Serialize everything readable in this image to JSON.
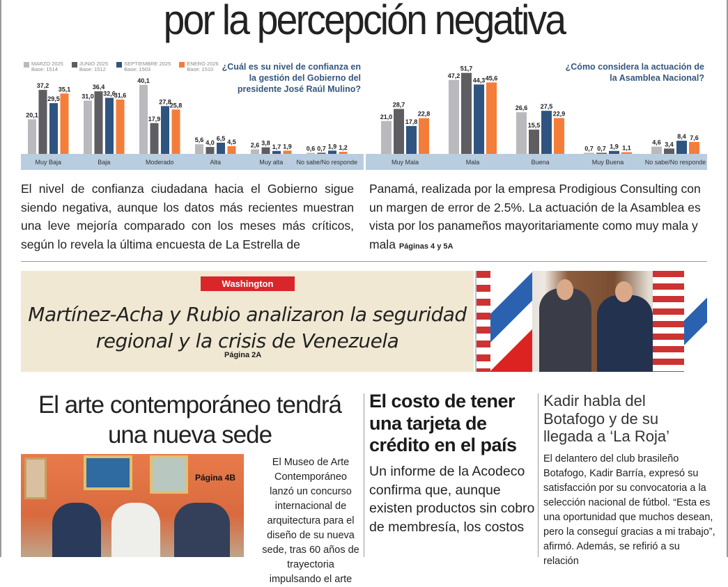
{
  "headline": "por la percepción negativa",
  "legend": [
    {
      "label": "MARZO 2025",
      "base": "Base: 1514",
      "color": "#b9b9be"
    },
    {
      "label": "JUNIO 2025",
      "base": "Base: 1512",
      "color": "#5e5e62"
    },
    {
      "label": "SEPTIEMBRE 2025",
      "base": "Base: 1503",
      "color": "#2f5480"
    },
    {
      "label": "ENERO 2026",
      "base": "Base: 1510",
      "color": "#f47d3a"
    }
  ],
  "chart_data": [
    {
      "type": "bar",
      "title": "¿Cuál es su nivel de confianza en la gestión del Gobierno del presidente José Raúl Mulino?",
      "categories": [
        "Muy Baja",
        "Baja",
        "Moderado",
        "Alta",
        "Muy alta",
        "No sabe/No responde"
      ],
      "series": [
        {
          "name": "MARZO 2025",
          "values": [
            20.1,
            31.0,
            40.1,
            5.6,
            2.6,
            0.6
          ]
        },
        {
          "name": "JUNIO 2025",
          "values": [
            37.2,
            36.4,
            17.9,
            4.0,
            3.8,
            0.7
          ]
        },
        {
          "name": "SEPTIEMBRE 2025",
          "values": [
            29.5,
            32.6,
            27.8,
            6.5,
            1.7,
            1.9
          ]
        },
        {
          "name": "ENERO 2026",
          "values": [
            35.1,
            31.6,
            25.8,
            4.5,
            1.9,
            1.2
          ]
        }
      ],
      "ylim": [
        0,
        42
      ]
    },
    {
      "type": "bar",
      "title": "¿Cómo considera la actuación de la Asamblea Nacional?",
      "categories": [
        "Muy Mala",
        "Mala",
        "Buena",
        "Muy Buena",
        "No sabe/No responde"
      ],
      "series": [
        {
          "name": "MARZO 2025",
          "values": [
            21.0,
            47.2,
            26.6,
            0.7,
            4.6
          ]
        },
        {
          "name": "JUNIO 2025",
          "values": [
            28.7,
            51.7,
            15.5,
            0.7,
            3.4
          ]
        },
        {
          "name": "SEPTIEMBRE 2025",
          "values": [
            17.8,
            44.3,
            27.5,
            1.9,
            8.4
          ]
        },
        {
          "name": "ENERO 2026",
          "values": [
            22.8,
            45.6,
            22.9,
            1.1,
            7.6
          ]
        }
      ],
      "ylim": [
        0,
        54
      ]
    }
  ],
  "lead": {
    "left": "El nivel de confianza ciudadana hacia el Gobierno sigue siendo negativa, aunque los datos más recientes muestran una leve mejoría comparado con los meses más críticos, según lo revela la última encuesta de La Estrella de",
    "right": "Panamá, realizada por la empresa Prodigious Consulting con un margen de error de 2.5%. La actuación de la Asamblea es vista por los panameños mayoritariamente como muy mala y mala",
    "page": "Páginas 4 y 5A"
  },
  "washington": {
    "tag": "Washington",
    "headline": "Martínez-Acha y Rubio analizaron la seguridad regional y la crisis de Venezuela",
    "page": "Página 2A"
  },
  "art": {
    "headline": "El arte contemporáneo tendrá una nueva sede",
    "page": "Página 4B",
    "text": "El Museo de Arte Contemporáneo lanzó un concurso internacional de arquitectura para el diseño de su nueva sede, tras 60 años de trayectoria impulsando el arte"
  },
  "card": {
    "headline": "El costo de tener una tarjeta de crédito en el país",
    "text": "Un informe de la Acodeco  confirma que, aunque existen productos sin cobro de membresía, los costos"
  },
  "kadir": {
    "headline": "Kadir habla del Botafogo y de su llegada a ‘La Roja’",
    "text": "El delantero del club brasileño Botafogo, Kadir Barría, expresó su satisfacción por su convocatoria a la selección nacional de fútbol. “Esta es una oportunidad que muchos desean, pero la conseguí gracias a mi trabajo”, afirmó. Además, se refirió a su relación"
  }
}
